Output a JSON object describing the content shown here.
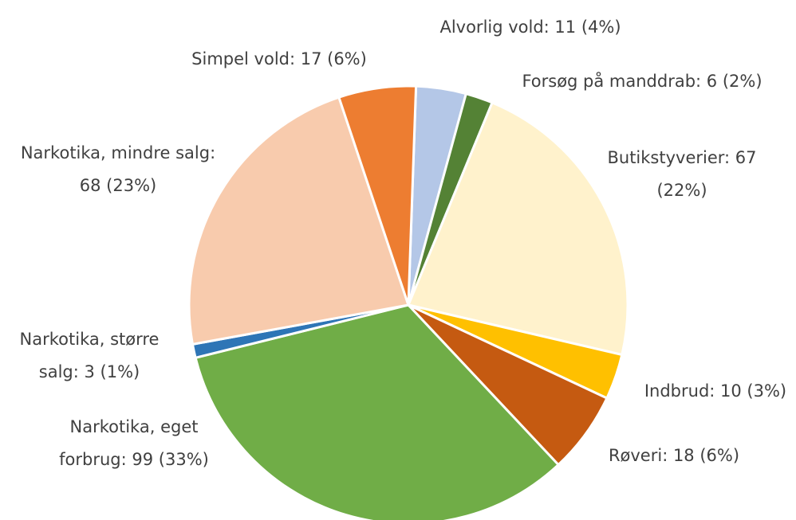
{
  "chart_data": {
    "type": "pie",
    "values": [
      11,
      6,
      67,
      10,
      18,
      99,
      3,
      68,
      17
    ],
    "value_labels": [
      [
        "Alvorlig vold: 11 (4%)"
      ],
      [
        "Forsøg på manddrab: 6 (2%)"
      ],
      [
        "Butikstyverier: 67",
        "(22%)"
      ],
      [
        "Indbrud: 10 (3%)"
      ],
      [
        "Røveri: 18 (6%)"
      ],
      [
        "Narkotika, eget",
        "forbrug: 99 (33%)"
      ],
      [
        "Narkotika, større",
        "salg: 3 (1%)"
      ],
      [
        "Narkotika, mindre salg:",
        "68 (23%)"
      ],
      [
        "Simpel vold: 17 (6%)"
      ]
    ],
    "colors": [
      "#b4c7e7",
      "#548235",
      "#fff2cc",
      "#ffc000",
      "#c55a11",
      "#70ad47",
      "#2e75b6",
      "#f8cbad",
      "#ed7d31"
    ]
  }
}
